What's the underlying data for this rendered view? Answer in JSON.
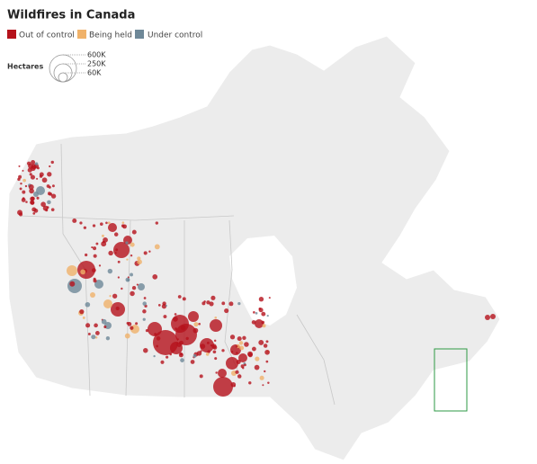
{
  "header": {
    "title": "Wildfires in Canada"
  },
  "legend": {
    "items": [
      "Out of control",
      "Being held",
      "Under control"
    ]
  },
  "size_legend": {
    "title": "Hectares",
    "labels": [
      "600K",
      "250K",
      "60K"
    ]
  }
}
